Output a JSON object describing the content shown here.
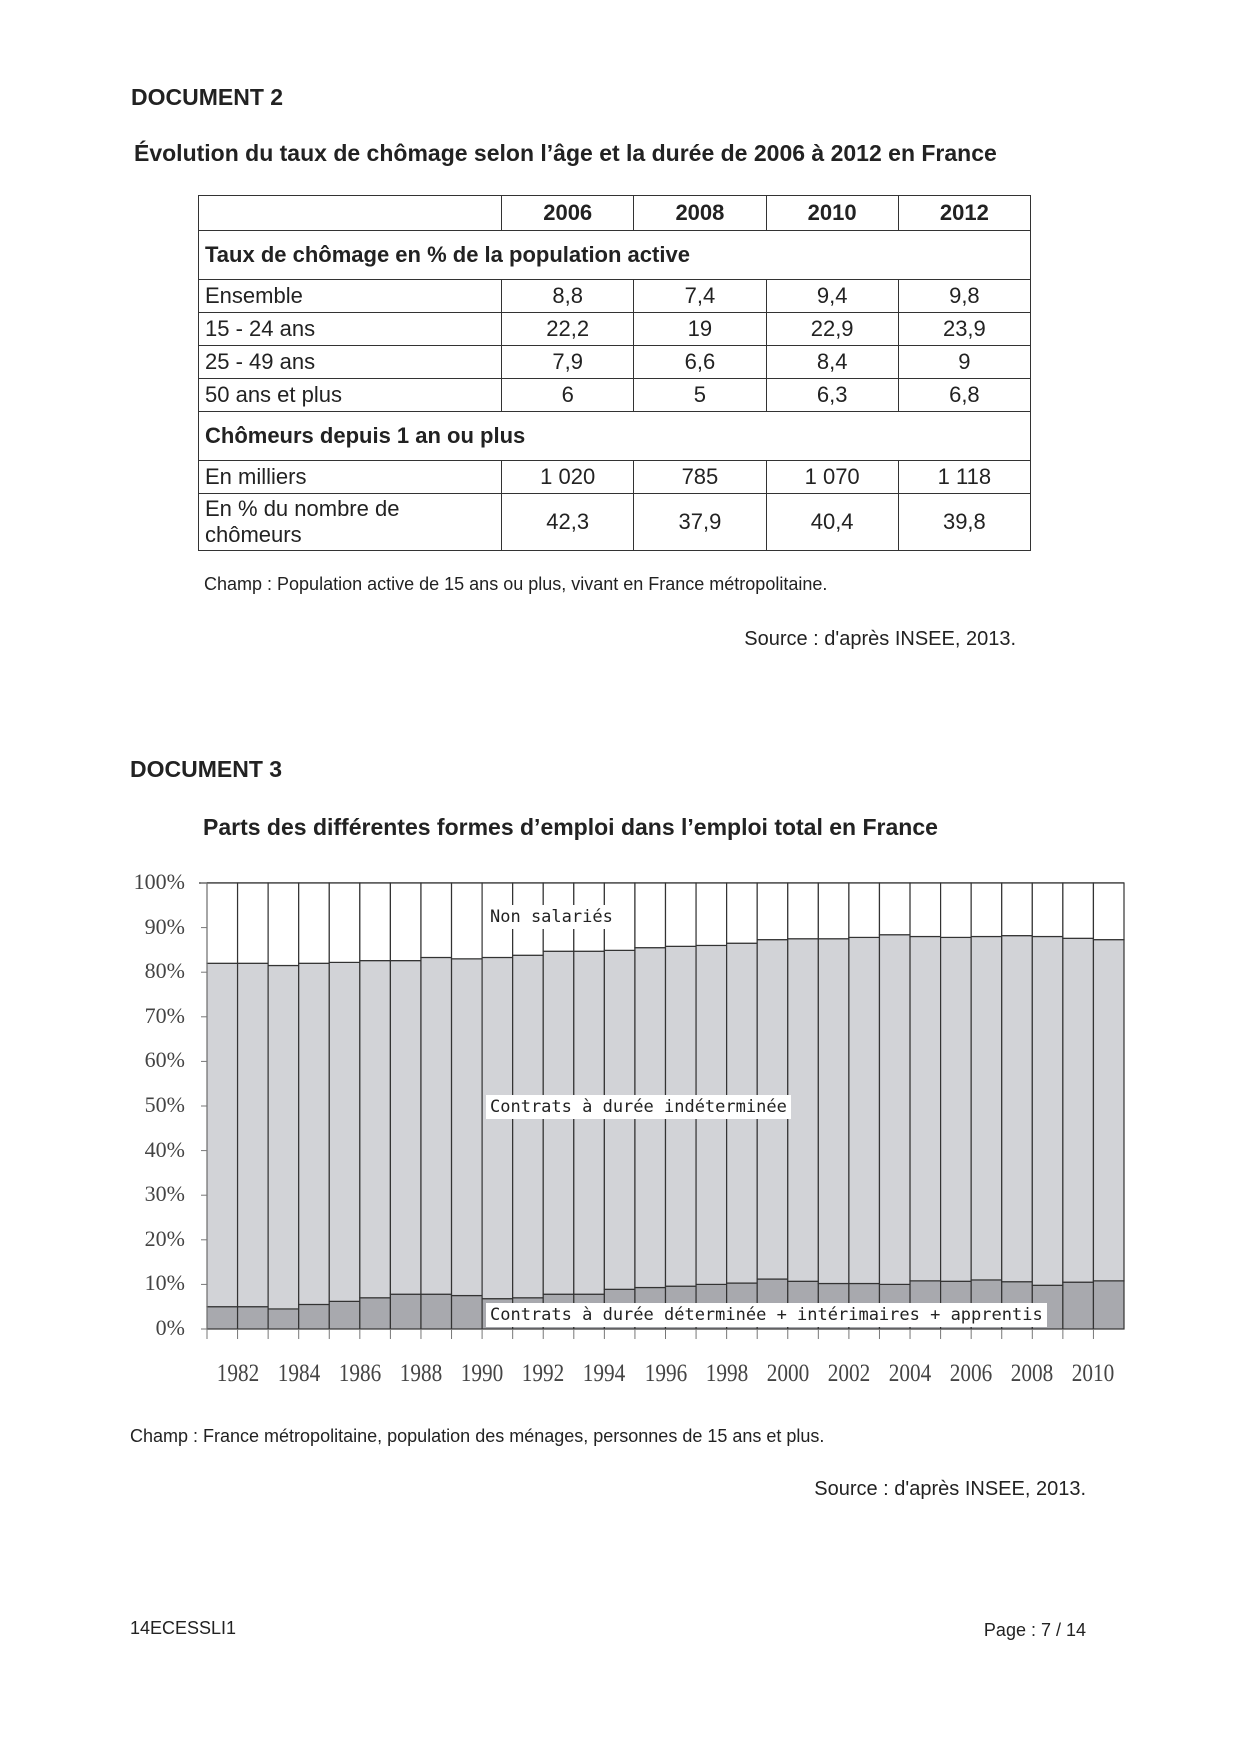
{
  "doc2": {
    "heading": "DOCUMENT 2",
    "title": "Évolution du taux de chômage selon l’âge et la durée de 2006 à 2012 en France",
    "columns": [
      "2006",
      "2008",
      "2010",
      "2012"
    ],
    "section1": "Taux de chômage en % de la population active",
    "rows1": [
      {
        "label": "Ensemble",
        "values": [
          "8,8",
          "7,4",
          "9,4",
          "9,8"
        ]
      },
      {
        "label": "15 - 24 ans",
        "values": [
          "22,2",
          "19",
          "22,9",
          "23,9"
        ]
      },
      {
        "label": "25 - 49 ans",
        "values": [
          "7,9",
          "6,6",
          "8,4",
          "9"
        ]
      },
      {
        "label": "50 ans et plus",
        "values": [
          "6",
          "5",
          "6,3",
          "6,8"
        ]
      }
    ],
    "section2": "Chômeurs depuis 1 an ou plus",
    "rows2": [
      {
        "label": "En milliers",
        "values": [
          "1 020",
          "785",
          "1 070",
          "1 118"
        ]
      },
      {
        "label": "En % du nombre de chômeurs",
        "values": [
          "42,3",
          "37,9",
          "40,4",
          "39,8"
        ]
      }
    ],
    "champ": "Champ : Population active de 15 ans ou plus, vivant en France métropolitaine.",
    "source": "Source : d'après INSEE, 2013."
  },
  "doc3": {
    "heading": "DOCUMENT 3",
    "champ": "Champ : France métropolitaine, population des ménages, personnes de 15 ans et plus.",
    "source": "Source : d'après INSEE, 2013."
  },
  "chart_data": {
    "type": "bar",
    "stacked": true,
    "title": "Parts des différentes formes d’emploi dans l’emploi total en France",
    "categories": [
      1982,
      1983,
      1984,
      1985,
      1986,
      1987,
      1988,
      1989,
      1990,
      1991,
      1992,
      1993,
      1994,
      1995,
      1996,
      1997,
      1998,
      1999,
      2000,
      2001,
      2002,
      2003,
      2004,
      2005,
      2006,
      2007,
      2008,
      2009,
      2010,
      2011
    ],
    "xtick_labels": [
      "1982",
      "1984",
      "1986",
      "1988",
      "1990",
      "1992",
      "1994",
      "1996",
      "1998",
      "2000",
      "2002",
      "2004",
      "2006",
      "2008",
      "2010"
    ],
    "ytick_labels": [
      "0%",
      "10%",
      "20%",
      "30%",
      "40%",
      "50%",
      "60%",
      "70%",
      "80%",
      "90%",
      "100%"
    ],
    "ylim": [
      0,
      100
    ],
    "series": [
      {
        "name": "Contrats à durée déterminée + intérimaires + apprentis",
        "color": "#a8a9ae",
        "values": [
          5,
          5,
          4.5,
          5.5,
          6.2,
          7,
          7.8,
          7.8,
          7.5,
          6.8,
          7,
          7.8,
          7.8,
          8.9,
          9.3,
          9.6,
          10,
          10.3,
          11.2,
          10.7,
          10.2,
          10.2,
          10,
          10.8,
          10.7,
          11,
          10.6,
          9.8,
          10.5,
          10.8
        ]
      },
      {
        "name": "Contrats à durée indéterminée",
        "color": "#d2d3d7",
        "values": [
          77,
          77,
          77,
          76.5,
          76,
          75.6,
          74.8,
          75.5,
          75.5,
          76.5,
          76.8,
          76.9,
          76.9,
          76,
          76.2,
          76.2,
          76,
          76.2,
          76.1,
          76.8,
          77.3,
          77.6,
          78.4,
          77.2,
          77.1,
          77,
          77.6,
          78.2,
          77.1,
          76.5
        ]
      },
      {
        "name": "Non salariés",
        "color": "#ffffff",
        "values": [
          18,
          18,
          18.5,
          18,
          17.8,
          17.4,
          17.4,
          16.7,
          17,
          16.7,
          16.2,
          15.3,
          15.3,
          15.1,
          14.5,
          14.2,
          14,
          13.5,
          12.7,
          12.5,
          12.5,
          12.2,
          11.6,
          12,
          12.2,
          12,
          11.8,
          12,
          12.4,
          12.7
        ]
      }
    ]
  },
  "footer": {
    "code": "14ECESSLI1",
    "page": "Page : 7 / 14"
  }
}
